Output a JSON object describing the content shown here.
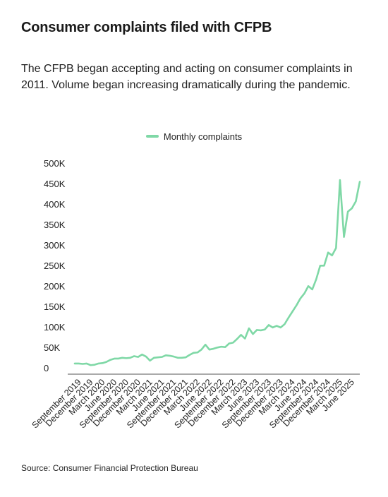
{
  "title": "Consumer complaints filed with CFPB",
  "subtitle": "The CFPB began accepting and acting on consumer complaints in 2011. Volume began increasing dramatically during the pandemic.",
  "source": "Source: Consumer Financial Protection Bureau",
  "colors": {
    "line": "#7fd8a6",
    "axis": "#555555"
  },
  "chart_data": {
    "type": "line",
    "title": "",
    "xlabel": "",
    "ylabel": "",
    "ylim": [
      0,
      500000
    ],
    "grid": false,
    "legend_position": "top-center",
    "y_ticks": [
      0,
      50000,
      100000,
      150000,
      200000,
      250000,
      300000,
      350000,
      400000,
      450000,
      500000
    ],
    "y_tick_labels": [
      "0",
      "50K",
      "100K",
      "150K",
      "200K",
      "250K",
      "300K",
      "350K",
      "400K",
      "450K",
      "500K"
    ],
    "x_tick_labels": [
      "September 2019",
      "December 2019",
      "March 2020",
      "June 2020",
      "September 2020",
      "December 2020",
      "March 2021",
      "June 2021",
      "September 2021",
      "December 2021",
      "March 2022",
      "June 2022",
      "September 2022",
      "December 2022",
      "March 2023",
      "June 2023",
      "September 2023",
      "December 2023",
      "March 2024",
      "June 2024",
      "September 2024",
      "December 2024",
      "March 2025",
      "June 2025"
    ],
    "x": [
      "2019-08",
      "2019-09",
      "2019-10",
      "2019-11",
      "2019-12",
      "2020-01",
      "2020-02",
      "2020-03",
      "2020-04",
      "2020-05",
      "2020-06",
      "2020-07",
      "2020-08",
      "2020-09",
      "2020-10",
      "2020-11",
      "2020-12",
      "2021-01",
      "2021-02",
      "2021-03",
      "2021-04",
      "2021-05",
      "2021-06",
      "2021-07",
      "2021-08",
      "2021-09",
      "2021-10",
      "2021-11",
      "2021-12",
      "2022-01",
      "2022-02",
      "2022-03",
      "2022-04",
      "2022-05",
      "2022-06",
      "2022-07",
      "2022-08",
      "2022-09",
      "2022-10",
      "2022-11",
      "2022-12",
      "2023-01",
      "2023-02",
      "2023-03",
      "2023-04",
      "2023-05",
      "2023-06",
      "2023-07",
      "2023-08",
      "2023-09",
      "2023-10",
      "2023-11",
      "2023-12",
      "2024-01",
      "2024-02",
      "2024-03",
      "2024-04",
      "2024-05",
      "2024-06",
      "2024-07",
      "2024-08",
      "2024-09",
      "2024-10",
      "2024-11",
      "2024-12",
      "2025-01",
      "2025-02",
      "2025-03",
      "2025-04",
      "2025-05",
      "2025-06"
    ],
    "series": [
      {
        "name": "Monthly complaints",
        "values": [
          26000,
          26000,
          25000,
          26000,
          22000,
          23000,
          26000,
          27000,
          30000,
          35000,
          38000,
          38000,
          40000,
          39000,
          40000,
          44000,
          42000,
          48000,
          43000,
          33000,
          40000,
          41000,
          42000,
          46000,
          45000,
          43000,
          40000,
          40000,
          41000,
          47000,
          52000,
          53000,
          60000,
          72000,
          60000,
          62000,
          65000,
          67000,
          66000,
          75000,
          77000,
          86000,
          96000,
          87000,
          112000,
          98000,
          108000,
          107000,
          109000,
          120000,
          114000,
          118000,
          114000,
          122000,
          138000,
          153000,
          168000,
          185000,
          197000,
          215000,
          207000,
          232000,
          265000,
          265000,
          297000,
          290000,
          308000,
          474000,
          335000,
          397000,
          405000
        ]
      }
    ],
    "series_extra": [
      422000,
      470000
    ]
  }
}
